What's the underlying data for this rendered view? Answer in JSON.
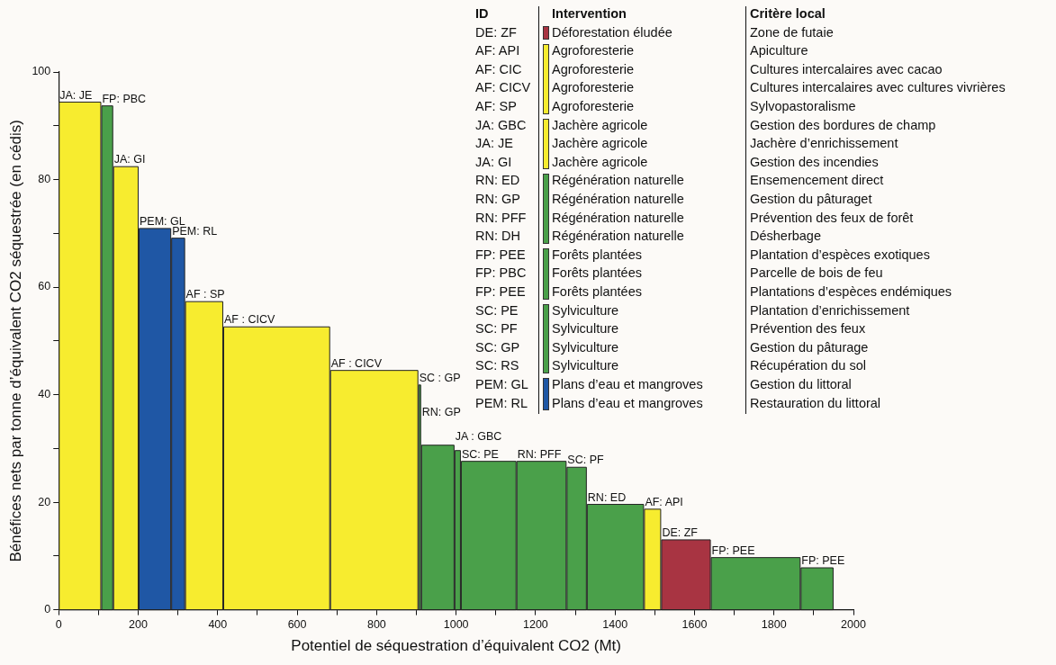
{
  "chart_data": {
    "type": "histogram",
    "xlabel": "Potentiel de séquestration d’équivalent CO2 (Mt)",
    "ylabel": "Bénéfices nets par tonne d’équivalent CO2 séquestrée (en cédis)",
    "bins": [
      0,
      107,
      137,
      201,
      283,
      318,
      414,
      683,
      905,
      912,
      996,
      1012,
      1152,
      1278,
      1329,
      1473,
      1516,
      1641,
      1867,
      1950
    ],
    "values": [
      94.4,
      93.7,
      82.4,
      70.9,
      69.1,
      57.3,
      52.6,
      44.5,
      41.8,
      30.6,
      29.6,
      27.6,
      27.6,
      26.5,
      19.6,
      18.7,
      13.0,
      9.7,
      7.8
    ],
    "colors": [
      "#f7ec2f",
      "#4aa04a",
      "#f7ec2f",
      "#1f57a5",
      "#1f57a5",
      "#f7ec2f",
      "#f7ec2f",
      "#f7ec2f",
      "#4aa04a",
      "#4aa04a",
      "#4aa04a",
      "#4aa04a",
      "#4aa04a",
      "#4aa04a",
      "#4aa04a",
      "#f7ec2f",
      "#a83442",
      "#4aa04a",
      "#4aa04a"
    ],
    "xlim": [
      0,
      2000
    ],
    "xticks": [
      0,
      {
        "value": 100,
        "label": null
      },
      200,
      {
        "value": 300,
        "label": null
      },
      400,
      {
        "value": 500,
        "label": null
      },
      600,
      {
        "value": 700,
        "label": null
      },
      800,
      {
        "value": 900,
        "label": null
      },
      1000,
      {
        "value": 1100,
        "label": null
      },
      1200,
      {
        "value": 1300,
        "label": null
      },
      1400,
      {
        "value": 1500,
        "label": null
      },
      1600,
      {
        "value": 1700,
        "label": null
      },
      1800,
      {
        "value": 1900,
        "label": null
      },
      2000
    ],
    "ylim": [
      0,
      100
    ],
    "yticks": [
      0,
      {
        "value": 10,
        "label": null
      },
      20,
      {
        "value": 30,
        "label": null
      },
      40,
      {
        "value": 50,
        "label": null
      },
      60,
      {
        "value": 70,
        "label": null
      },
      80,
      {
        "value": 90,
        "label": null
      },
      100
    ],
    "grid": false,
    "annotations": [
      {
        "text": "JA: JE",
        "x": 0,
        "y": 94.4
      },
      {
        "text": "FP: PBC",
        "x": 107,
        "y": 93.7
      },
      {
        "text": "JA: GI",
        "x": 137,
        "y": 82.4
      },
      {
        "text": "PEM: GL",
        "x": 201,
        "y": 70.9
      },
      {
        "text": "PEM: RL",
        "x": 283,
        "y": 69.1
      },
      {
        "text": "AF : SP",
        "x": 318,
        "y": 57.3
      },
      {
        "text": "AF : CICV",
        "x": 414,
        "y": 52.6
      },
      {
        "text": "AF : CICV",
        "x": 683,
        "y": 44.5
      },
      {
        "text": "SC : GP",
        "x": 905,
        "y": 41.8
      },
      {
        "text": "RN: GP",
        "x": 912,
        "y": 35.5
      },
      {
        "text": "JA : GBC",
        "x": 996,
        "y": 31
      },
      {
        "text": "SC: PE",
        "x": 1012,
        "y": 27.6
      },
      {
        "text": "RN: PFF",
        "x": 1152,
        "y": 27.6
      },
      {
        "text": "SC: PF",
        "x": 1278,
        "y": 26.5
      },
      {
        "text": "RN: ED",
        "x": 1329,
        "y": 19.6
      },
      {
        "text": "AF: API",
        "x": 1473,
        "y": 18.7
      },
      {
        "text": "DE: ZF",
        "x": 1516,
        "y": 13.0
      },
      {
        "text": "FP: PEE",
        "x": 1641,
        "y": 9.7
      },
      {
        "text": "FP: PEE",
        "x": 1867,
        "y": 7.8
      },
      "ID",
      "Intervention",
      "Critère local",
      "DE: ZF",
      "Déforestation éludée",
      "Zone de futaie",
      "AF: API",
      "Agroforesterie",
      "Apiculture",
      "AF: CIC",
      "Agroforesterie",
      "Cultures intercalaires avec cacao",
      "AF: CICV",
      "Agroforesterie",
      "Cultures intercalaires avec cultures vivrières",
      "AF: SP",
      "Agroforesterie",
      "Sylvopastoralisme",
      "JA: GBC",
      "Jachère agricole",
      "Gestion des bordures de champ",
      "JA: JE",
      "Jachère agricole",
      "Jachère d’enrichissement",
      "JA: GI",
      "Jachère agricole",
      "Gestion des incendies",
      "RN: ED",
      "Régénération naturelle",
      "Ensemencement direct",
      "RN: GP",
      "Régénération naturelle",
      "Gestion du pâturaget",
      "RN: PFF",
      "Régénération naturelle",
      "Prévention des feux de forêt",
      "RN: DH",
      "Régénération naturelle",
      "Désherbage",
      "FP: PEE",
      "Forêts plantées",
      "Plantation d’espèces exotiques",
      "FP: PBC",
      "Forêts plantées",
      "Parcelle de bois de feu",
      "FP: PEE",
      "Forêts plantées",
      "Plantations d’espèces endémiques",
      "SC: PE",
      "Sylviculture",
      "Plantation d’enrichissement",
      "SC: PF",
      "Sylviculture",
      "Prévention des feux",
      "SC: GP",
      "Sylviculture",
      "Gestion du pâturage",
      "SC: RS",
      "Sylviculture",
      "Récupération du sol",
      "PEM: GL",
      "Plans d’eau et mangroves",
      "Gestion du littoral",
      "PEM: RL",
      "Plans d’eau et mangroves",
      "Restauration du littoral"
    ]
  }
}
